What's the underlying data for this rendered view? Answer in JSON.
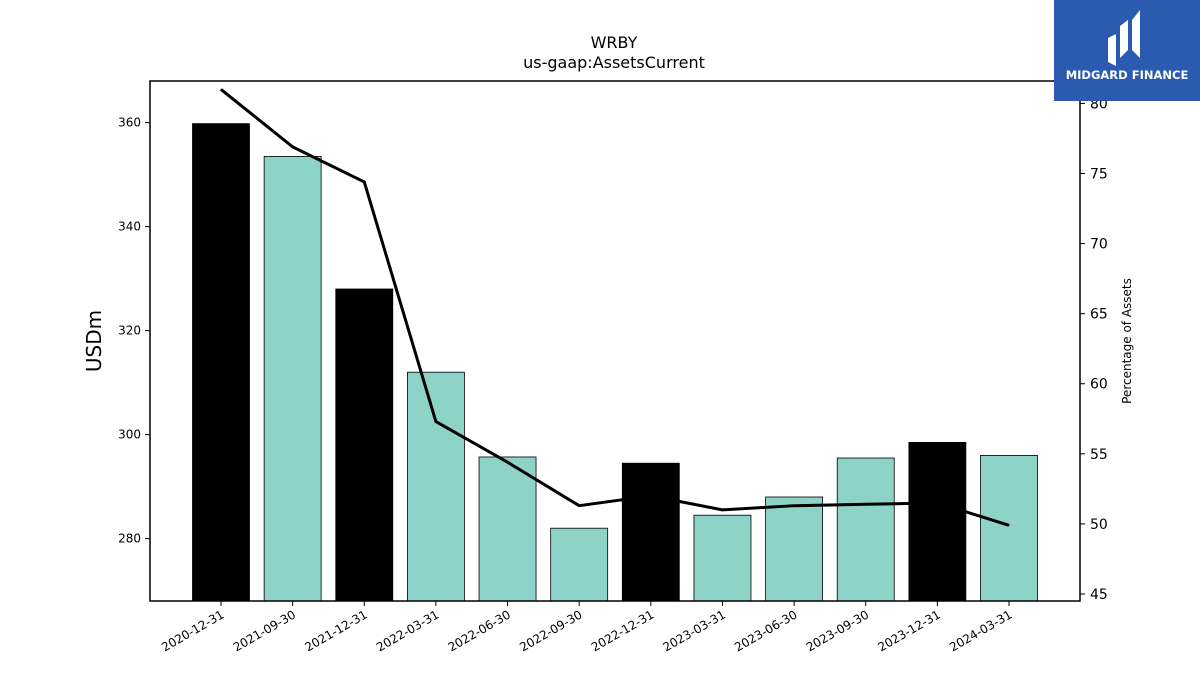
{
  "logo": {
    "text": "MIDGARD FINANCE",
    "icon": "midgard-logo-icon"
  },
  "colors": {
    "highlight_bar": "#000000",
    "normal_bar": "#8dd3c7",
    "line": "#000000",
    "logo_bg": "#2a5bb0"
  },
  "chart_data": {
    "type": "bar",
    "title": "WRBY",
    "subtitle": "us-gaap:AssetsCurrent",
    "ylabel": "USDm",
    "y2label": "Percentage of Assets",
    "ylim": [
      268,
      368
    ],
    "y2lim": [
      44.5,
      81.6
    ],
    "yticks": [
      280,
      300,
      320,
      340,
      360
    ],
    "y2ticks": [
      45,
      50,
      55,
      60,
      65,
      70,
      75,
      80
    ],
    "categories": [
      "2020-12-31",
      "2021-09-30",
      "2021-12-31",
      "2022-03-31",
      "2022-06-30",
      "2022-09-30",
      "2022-12-31",
      "2023-03-31",
      "2023-06-30",
      "2023-09-30",
      "2023-12-31",
      "2024-03-31"
    ],
    "series": [
      {
        "type": "bar",
        "axis": "left",
        "values": [
          359.8,
          353.5,
          328.0,
          312.0,
          295.7,
          282.0,
          294.5,
          284.5,
          288.0,
          295.5,
          298.5,
          296.0
        ],
        "highlight": [
          true,
          false,
          true,
          false,
          false,
          false,
          true,
          false,
          false,
          false,
          true,
          false
        ]
      },
      {
        "type": "line",
        "axis": "right",
        "values": [
          81.0,
          76.9,
          74.4,
          57.3,
          54.4,
          51.3,
          52.0,
          51.0,
          51.3,
          51.4,
          51.5,
          49.9
        ]
      }
    ],
    "grid": false,
    "legend": "none"
  }
}
